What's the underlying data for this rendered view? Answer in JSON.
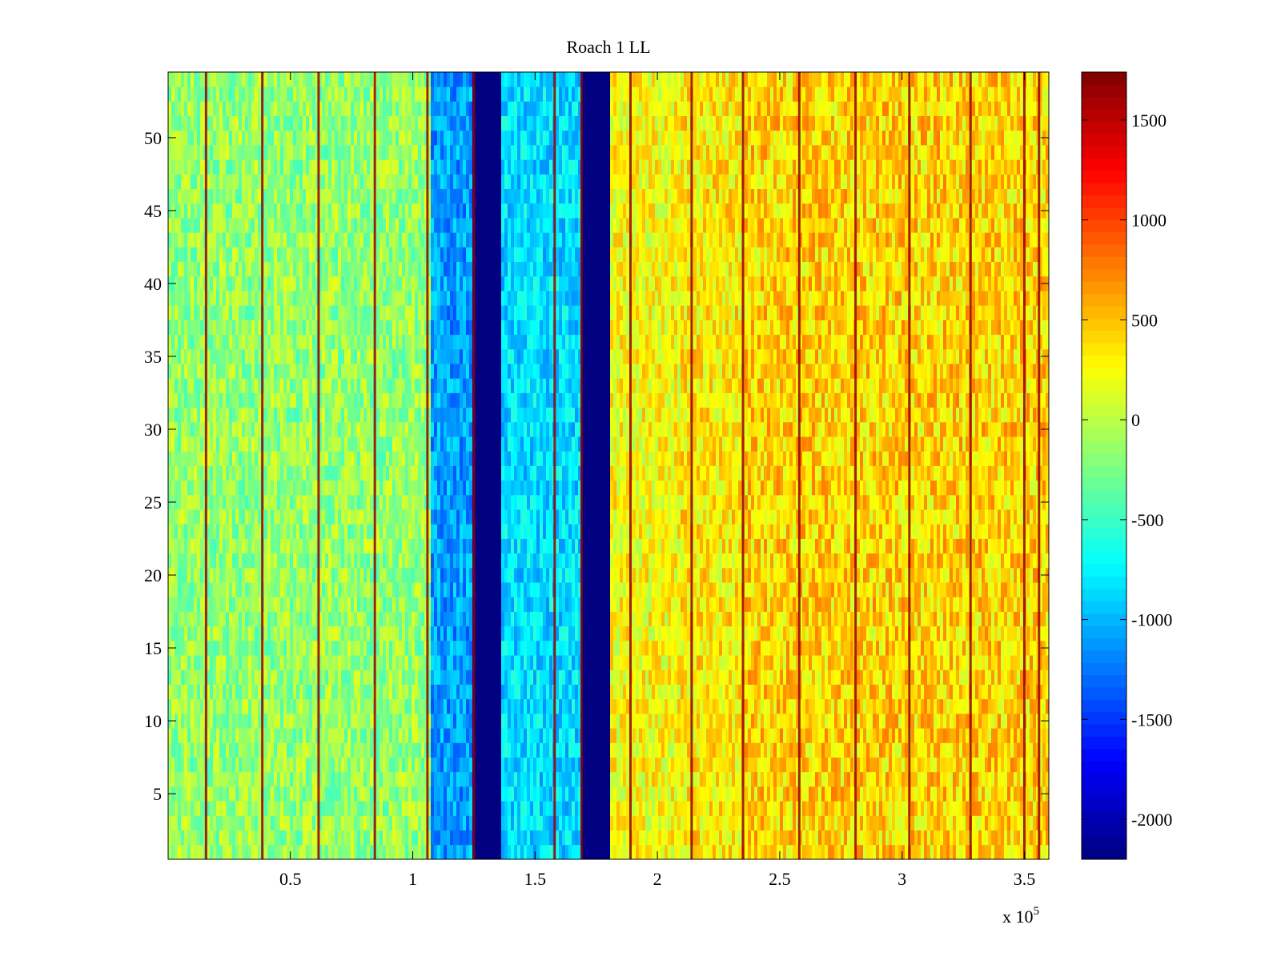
{
  "chart_data": {
    "type": "heatmap",
    "title": "Roach 1 LL",
    "xlabel": "",
    "ylabel": "",
    "x_multiplier_label": "x 10",
    "x_multiplier_exponent": "5",
    "xlim": [
      0,
      3.6
    ],
    "ylim": [
      0.5,
      54.5
    ],
    "x_ticks": [
      {
        "value": 0.5,
        "label": "0.5"
      },
      {
        "value": 1,
        "label": "1"
      },
      {
        "value": 1.5,
        "label": "1.5"
      },
      {
        "value": 2,
        "label": "2"
      },
      {
        "value": 2.5,
        "label": "2.5"
      },
      {
        "value": 3,
        "label": "3"
      },
      {
        "value": 3.5,
        "label": "3.5"
      }
    ],
    "y_ticks": [
      {
        "value": 5,
        "label": "5"
      },
      {
        "value": 10,
        "label": "10"
      },
      {
        "value": 15,
        "label": "15"
      },
      {
        "value": 20,
        "label": "20"
      },
      {
        "value": 25,
        "label": "25"
      },
      {
        "value": 30,
        "label": "30"
      },
      {
        "value": 35,
        "label": "35"
      },
      {
        "value": 40,
        "label": "40"
      },
      {
        "value": 45,
        "label": "45"
      },
      {
        "value": 50,
        "label": "50"
      }
    ],
    "colorbar": {
      "colormap": "jet",
      "range": [
        -2200,
        1740
      ],
      "ticks": [
        {
          "value": 1500,
          "label": "1500"
        },
        {
          "value": 1000,
          "label": "1000"
        },
        {
          "value": 500,
          "label": "500"
        },
        {
          "value": 0,
          "label": "0"
        },
        {
          "value": -500,
          "label": "-500"
        },
        {
          "value": -1000,
          "label": "-1000"
        },
        {
          "value": -1500,
          "label": "-1500"
        },
        {
          "value": -2000,
          "label": "-2000"
        }
      ]
    },
    "rows": 54,
    "bands": [
      {
        "x_start": 0.0,
        "x_end": 1.07,
        "base_value": -150,
        "noise": 320
      },
      {
        "x_start": 1.07,
        "x_end": 1.24,
        "base_value": -1100,
        "noise": 300
      },
      {
        "x_start": 1.24,
        "x_end": 1.36,
        "base_value": -2200,
        "noise": 0
      },
      {
        "x_start": 1.36,
        "x_end": 1.69,
        "base_value": -850,
        "noise": 300
      },
      {
        "x_start": 1.69,
        "x_end": 1.81,
        "base_value": -2200,
        "noise": 0
      },
      {
        "x_start": 1.81,
        "x_end": 2.1,
        "base_value": 250,
        "noise": 320
      },
      {
        "x_start": 2.1,
        "x_end": 2.35,
        "base_value": 330,
        "noise": 330
      },
      {
        "x_start": 2.35,
        "x_end": 3.6,
        "base_value": 420,
        "noise": 360
      }
    ],
    "spikes": {
      "value": 1650,
      "x": [
        0.155,
        0.385,
        0.615,
        0.845,
        1.06,
        1.25,
        1.58,
        1.69,
        1.89,
        2.14,
        2.35,
        2.58,
        2.81,
        3.03,
        3.28,
        3.5,
        3.56
      ]
    }
  }
}
